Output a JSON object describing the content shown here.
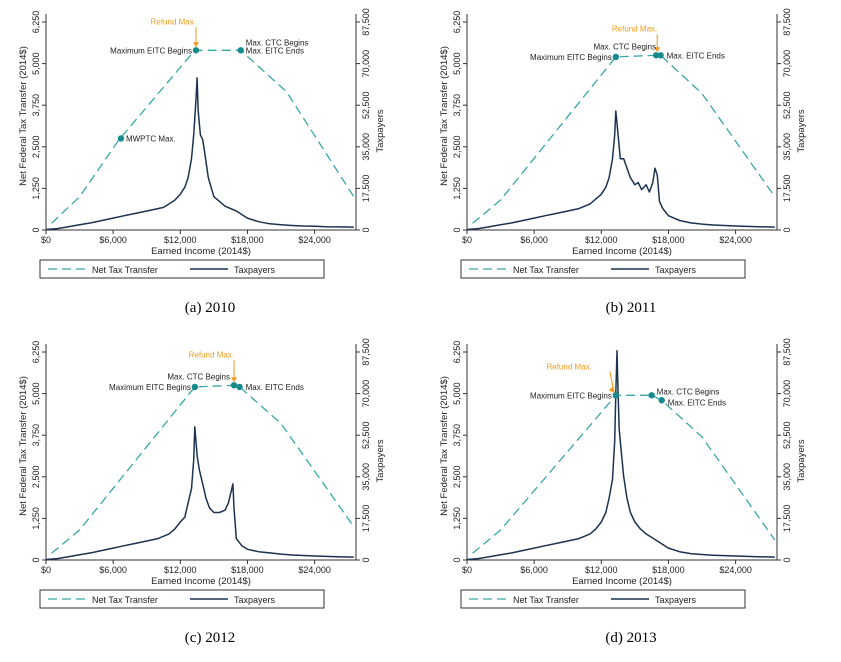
{
  "colors": {
    "transfer": "#3aa6a8",
    "taxpayers": "#1c3350",
    "marker": "#178a8d",
    "refund": "#f39c1f"
  },
  "shared": {
    "ylabel_left": "Net Federal Tax Transfer (2014$)",
    "ylabel_right": "Taxpayers",
    "xlabel": "Earned Income (2014$)",
    "xticks": [
      0,
      6000,
      12000,
      18000,
      24000
    ],
    "xtick_labels": [
      "$0",
      "$6,000",
      "$12,000",
      "$18,000",
      "$24,000"
    ],
    "yticks_left": [
      0,
      1250,
      2500,
      3750,
      5000,
      6250
    ],
    "ytick_left_labels": [
      "0",
      "1,250",
      "2,500",
      "3,750",
      "5,000",
      "6,250"
    ],
    "yticks_right": [
      0,
      17500,
      35000,
      52500,
      70000,
      87500
    ],
    "ytick_right_labels": [
      "0",
      "17,500",
      "35,000",
      "52,500",
      "70,000",
      "87,500"
    ],
    "legend": [
      "Net Tax Transfer",
      "Taxpayers"
    ]
  },
  "chart_data": [
    {
      "type": "line",
      "caption": "(a) 2010",
      "xlim": [
        0,
        27700
      ],
      "ylim_left": [
        0,
        6250
      ],
      "ylim_right": [
        0,
        87500
      ],
      "series": [
        {
          "name": "Net Tax Transfer",
          "axis": "left",
          "style": "dashed",
          "x": [
            500,
            3000,
            6500,
            13300,
            17400,
            21500,
            27500
          ],
          "y": [
            200,
            1000,
            2700,
            5400,
            5400,
            4150,
            1000
          ]
        },
        {
          "name": "Taxpayers",
          "axis": "right",
          "style": "solid",
          "x": [
            0,
            1000,
            2000,
            3000,
            4000,
            5000,
            6000,
            7000,
            8000,
            9000,
            10000,
            10500,
            11000,
            11500,
            12000,
            12400,
            12700,
            13000,
            13200,
            13400,
            13500,
            13600,
            13800,
            14000,
            14200,
            14500,
            15000,
            16000,
            17000,
            18000,
            19000,
            20000,
            21000,
            22000,
            23000,
            24000,
            25000,
            26000,
            27500
          ],
          "y": [
            200,
            600,
            1400,
            2200,
            3000,
            4000,
            5000,
            6000,
            7000,
            8000,
            9000,
            9500,
            11000,
            12500,
            15000,
            18000,
            22000,
            30000,
            40000,
            55000,
            64000,
            50000,
            40000,
            38000,
            32000,
            22000,
            14000,
            10000,
            8000,
            5000,
            3500,
            2600,
            2200,
            1900,
            1700,
            1600,
            1400,
            1300,
            1200
          ]
        }
      ],
      "annotations": [
        {
          "label": "Refund Max.",
          "x": 13400,
          "y": 5400,
          "kind": "refund"
        },
        {
          "label": "Maximum EITC Begins",
          "x": 13400,
          "y": 5400,
          "kind": "point"
        },
        {
          "label": "Max. CTC Begins",
          "x": 17400,
          "y": 5400,
          "kind": "label"
        },
        {
          "label": "Max. EITC Ends",
          "x": 17400,
          "y": 5400,
          "kind": "point"
        },
        {
          "label": "MWPTC Max.",
          "x": 6700,
          "y": 2750,
          "kind": "point"
        }
      ]
    },
    {
      "type": "line",
      "caption": "(b) 2011",
      "xlim": [
        0,
        27700
      ],
      "ylim_left": [
        0,
        6250
      ],
      "ylim_right": [
        0,
        87500
      ],
      "series": [
        {
          "name": "Net Tax Transfer",
          "axis": "left",
          "style": "dashed",
          "x": [
            500,
            3000,
            13300,
            16900,
            17300,
            21000,
            27500
          ],
          "y": [
            200,
            900,
            5200,
            5250,
            5250,
            4100,
            1000
          ]
        },
        {
          "name": "Taxpayers",
          "axis": "right",
          "style": "solid",
          "x": [
            0,
            1000,
            2000,
            3000,
            4000,
            5000,
            6000,
            7000,
            8000,
            9000,
            10000,
            11000,
            11500,
            12000,
            12400,
            12700,
            13000,
            13200,
            13300,
            13500,
            13700,
            14000,
            14300,
            14600,
            15000,
            15300,
            15600,
            16000,
            16300,
            16600,
            16800,
            17000,
            17200,
            17500,
            18000,
            19000,
            20000,
            21000,
            22000,
            24000,
            26000,
            27500
          ],
          "y": [
            200,
            600,
            1400,
            2200,
            3000,
            4000,
            5000,
            6000,
            7000,
            8000,
            9000,
            11000,
            13000,
            15000,
            18000,
            22000,
            30000,
            40000,
            50000,
            40000,
            30000,
            30000,
            26000,
            22000,
            19000,
            20000,
            17000,
            19000,
            16000,
            20000,
            26000,
            23000,
            12000,
            9000,
            6000,
            4000,
            3000,
            2500,
            2100,
            1700,
            1400,
            1200
          ]
        }
      ],
      "annotations": [
        {
          "label": "Refund Max.",
          "x": 17000,
          "y": 5250,
          "kind": "refund"
        },
        {
          "label": "Maximum EITC Begins",
          "x": 13300,
          "y": 5200,
          "kind": "point"
        },
        {
          "label": "Max. CTC Begins",
          "x": 16900,
          "y": 5250,
          "kind": "point"
        },
        {
          "label": "Max. EITC Ends",
          "x": 17300,
          "y": 5250,
          "kind": "point"
        }
      ]
    },
    {
      "type": "line",
      "caption": "(c) 2012",
      "xlim": [
        0,
        27700
      ],
      "ylim_left": [
        0,
        6250
      ],
      "ylim_right": [
        0,
        87500
      ],
      "series": [
        {
          "name": "Net Tax Transfer",
          "axis": "left",
          "style": "dashed",
          "x": [
            500,
            3000,
            13300,
            16800,
            17300,
            21000,
            27500
          ],
          "y": [
            200,
            900,
            5200,
            5250,
            5200,
            4100,
            1000
          ]
        },
        {
          "name": "Taxpayers",
          "axis": "right",
          "style": "solid",
          "x": [
            0,
            1000,
            2000,
            3000,
            4000,
            5000,
            6000,
            7000,
            8000,
            9000,
            10000,
            11000,
            11500,
            12000,
            12400,
            12700,
            13000,
            13200,
            13300,
            13500,
            13700,
            14000,
            14300,
            14600,
            15000,
            15500,
            16000,
            16300,
            16500,
            16700,
            16800,
            17000,
            17500,
            18000,
            19000,
            20000,
            21000,
            22000,
            24000,
            26000,
            27500
          ],
          "y": [
            200,
            600,
            1400,
            2200,
            3000,
            4000,
            5000,
            6000,
            7000,
            8000,
            9000,
            11000,
            13000,
            16000,
            18000,
            24000,
            30000,
            42000,
            56000,
            44000,
            38000,
            32000,
            26000,
            22000,
            20000,
            20000,
            21000,
            24000,
            28000,
            32000,
            22000,
            9000,
            6000,
            4500,
            3500,
            3000,
            2500,
            2100,
            1700,
            1400,
            1200
          ]
        }
      ],
      "annotations": [
        {
          "label": "Refund Max.",
          "x": 16800,
          "y": 5250,
          "kind": "refund"
        },
        {
          "label": "Maximum EITC Begins",
          "x": 13300,
          "y": 5200,
          "kind": "point"
        },
        {
          "label": "Max. CTC Begins",
          "x": 16800,
          "y": 5250,
          "kind": "point"
        },
        {
          "label": "Max. EITC Ends",
          "x": 17300,
          "y": 5200,
          "kind": "point"
        }
      ]
    },
    {
      "type": "line",
      "caption": "(d) 2013",
      "xlim": [
        0,
        27700
      ],
      "ylim_left": [
        0,
        6250
      ],
      "ylim_right": [
        0,
        87500
      ],
      "series": [
        {
          "name": "Net Tax Transfer",
          "axis": "left",
          "style": "dashed",
          "x": [
            500,
            3000,
            13300,
            16500,
            17400,
            21000,
            27500
          ],
          "y": [
            200,
            900,
            4950,
            4950,
            4800,
            3700,
            600
          ]
        },
        {
          "name": "Taxpayers",
          "axis": "right",
          "style": "solid",
          "x": [
            0,
            1000,
            2000,
            3000,
            4000,
            5000,
            6000,
            7000,
            8000,
            9000,
            10000,
            11000,
            11500,
            12000,
            12400,
            12700,
            13000,
            13200,
            13300,
            13400,
            13500,
            13600,
            13800,
            14000,
            14300,
            14600,
            15000,
            15500,
            16000,
            17000,
            18000,
            19000,
            20000,
            21000,
            22000,
            24000,
            26000,
            27500
          ],
          "y": [
            200,
            600,
            1400,
            2200,
            3000,
            4000,
            5000,
            6000,
            7000,
            8000,
            9000,
            11000,
            13000,
            16000,
            20000,
            26000,
            34000,
            50000,
            70000,
            88000,
            70000,
            55000,
            45000,
            35000,
            26000,
            20000,
            16000,
            13000,
            11000,
            8000,
            5000,
            3500,
            2700,
            2300,
            2000,
            1700,
            1400,
            1200
          ]
        }
      ],
      "annotations": [
        {
          "label": "Refund Max.",
          "x": 13300,
          "y": 4950,
          "kind": "refund"
        },
        {
          "label": "Maximum EITC Begins",
          "x": 13300,
          "y": 4950,
          "kind": "point"
        },
        {
          "label": "Max. CTC Begins",
          "x": 16500,
          "y": 4950,
          "kind": "point"
        },
        {
          "label": "Max. EITC Ends",
          "x": 17400,
          "y": 4800,
          "kind": "point"
        }
      ]
    }
  ]
}
